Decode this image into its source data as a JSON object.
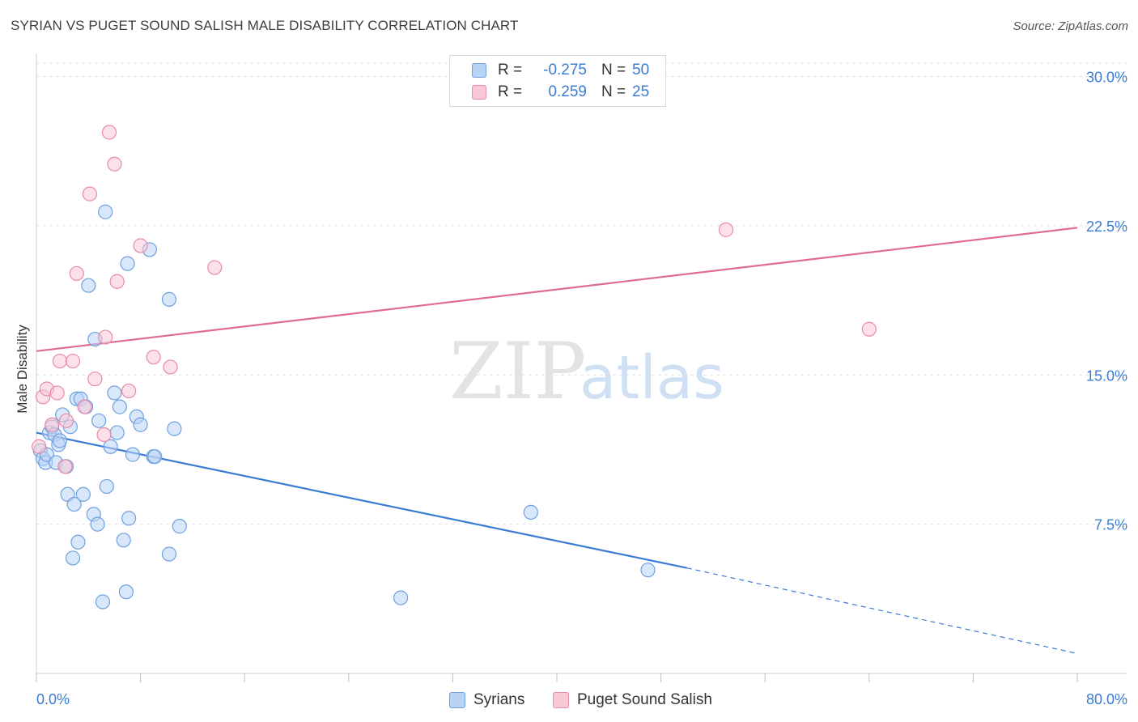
{
  "title": "SYRIAN VS PUGET SOUND SALISH MALE DISABILITY CORRELATION CHART",
  "source": "Source: ZipAtlas.com",
  "watermark": {
    "zip": "ZIP",
    "atlas": "atlas"
  },
  "legend": {
    "r_label": "R =",
    "n_label": "N =",
    "rows": [
      {
        "r": "-0.275",
        "n": "50",
        "fill": "#b9d3f5",
        "stroke": "#6ea0e0"
      },
      {
        "r": "0.259",
        "n": "25",
        "fill": "#f9c8d5",
        "stroke": "#e98aa8"
      }
    ]
  },
  "bottom_legend": [
    {
      "label": "Syrians",
      "fill": "#b9d3f5",
      "stroke": "#6ea0e0"
    },
    {
      "label": "Puget Sound Salish",
      "fill": "#f9c8d5",
      "stroke": "#e98aa8"
    }
  ],
  "chart_data": {
    "type": "scatter",
    "title": "SYRIAN VS PUGET SOUND SALISH MALE DISABILITY CORRELATION CHART",
    "xlabel": "",
    "ylabel": "Male Disability",
    "xlim": [
      0,
      80
    ],
    "ylim": [
      0,
      31
    ],
    "x_tick_labels": [
      "0.0%",
      "80.0%"
    ],
    "y_ticks": [
      7.5,
      15.0,
      22.5,
      30.0
    ],
    "y_tick_labels": [
      "7.5%",
      "15.0%",
      "22.5%",
      "30.0%"
    ],
    "x_minor_ticks": [
      0,
      8,
      16,
      24,
      32,
      40,
      48,
      56,
      64,
      72,
      80
    ],
    "grid": true,
    "series": [
      {
        "name": "Syrians",
        "color": "#3a7bd5",
        "fill": "#b9d3f5",
        "stroke": "#6ea0e0",
        "r": -0.275,
        "n": 50,
        "trend": {
          "x0": 0,
          "y0": 12.1,
          "x1": 50,
          "y1": 5.3,
          "dash_x1": 80,
          "dash_y1": 1.0
        },
        "points": [
          [
            0.3,
            11.2
          ],
          [
            0.5,
            10.8
          ],
          [
            0.7,
            10.6
          ],
          [
            0.8,
            11.0
          ],
          [
            1.0,
            12.1
          ],
          [
            1.2,
            12.4
          ],
          [
            1.4,
            12.0
          ],
          [
            1.5,
            10.6
          ],
          [
            1.7,
            11.5
          ],
          [
            1.8,
            11.7
          ],
          [
            2.0,
            13.0
          ],
          [
            2.3,
            10.4
          ],
          [
            2.4,
            9.0
          ],
          [
            2.6,
            12.4
          ],
          [
            2.8,
            5.8
          ],
          [
            2.9,
            8.5
          ],
          [
            3.1,
            13.8
          ],
          [
            3.2,
            6.6
          ],
          [
            3.4,
            13.8
          ],
          [
            3.6,
            9.0
          ],
          [
            3.8,
            13.4
          ],
          [
            4.0,
            19.5
          ],
          [
            4.4,
            8.0
          ],
          [
            4.5,
            16.8
          ],
          [
            4.7,
            7.5
          ],
          [
            4.8,
            12.7
          ],
          [
            5.1,
            3.6
          ],
          [
            5.3,
            23.2
          ],
          [
            5.4,
            9.4
          ],
          [
            5.7,
            11.4
          ],
          [
            6.0,
            14.1
          ],
          [
            6.2,
            12.1
          ],
          [
            6.4,
            13.4
          ],
          [
            6.7,
            6.7
          ],
          [
            6.9,
            4.1
          ],
          [
            7.0,
            20.6
          ],
          [
            7.1,
            7.8
          ],
          [
            7.4,
            11.0
          ],
          [
            7.7,
            12.9
          ],
          [
            8.0,
            12.5
          ],
          [
            8.7,
            21.3
          ],
          [
            9.0,
            10.9
          ],
          [
            9.1,
            10.9
          ],
          [
            10.2,
            18.8
          ],
          [
            10.2,
            6.0
          ],
          [
            10.6,
            12.3
          ],
          [
            11.0,
            7.4
          ],
          [
            28.0,
            3.8
          ],
          [
            38.0,
            8.1
          ],
          [
            47.0,
            5.2
          ]
        ]
      },
      {
        "name": "Puget Sound Salish",
        "color": "#e06b93",
        "fill": "#f9c8d5",
        "stroke": "#e98aa8",
        "r": 0.259,
        "n": 25,
        "trend": {
          "x0": 0,
          "y0": 16.2,
          "x1": 80,
          "y1": 22.4
        },
        "points": [
          [
            0.2,
            11.4
          ],
          [
            0.5,
            13.9
          ],
          [
            0.8,
            14.3
          ],
          [
            1.2,
            12.5
          ],
          [
            1.6,
            14.1
          ],
          [
            1.8,
            15.7
          ],
          [
            2.2,
            10.4
          ],
          [
            2.3,
            12.7
          ],
          [
            2.8,
            15.7
          ],
          [
            3.1,
            20.1
          ],
          [
            3.7,
            13.4
          ],
          [
            4.1,
            24.1
          ],
          [
            4.5,
            14.8
          ],
          [
            5.2,
            12.0
          ],
          [
            5.3,
            16.9
          ],
          [
            5.6,
            27.2
          ],
          [
            6.0,
            25.6
          ],
          [
            6.2,
            19.7
          ],
          [
            7.1,
            14.2
          ],
          [
            8.0,
            21.5
          ],
          [
            9.0,
            15.9
          ],
          [
            10.3,
            15.4
          ],
          [
            13.7,
            20.4
          ],
          [
            53.0,
            22.3
          ],
          [
            64.0,
            17.3
          ]
        ]
      }
    ]
  }
}
